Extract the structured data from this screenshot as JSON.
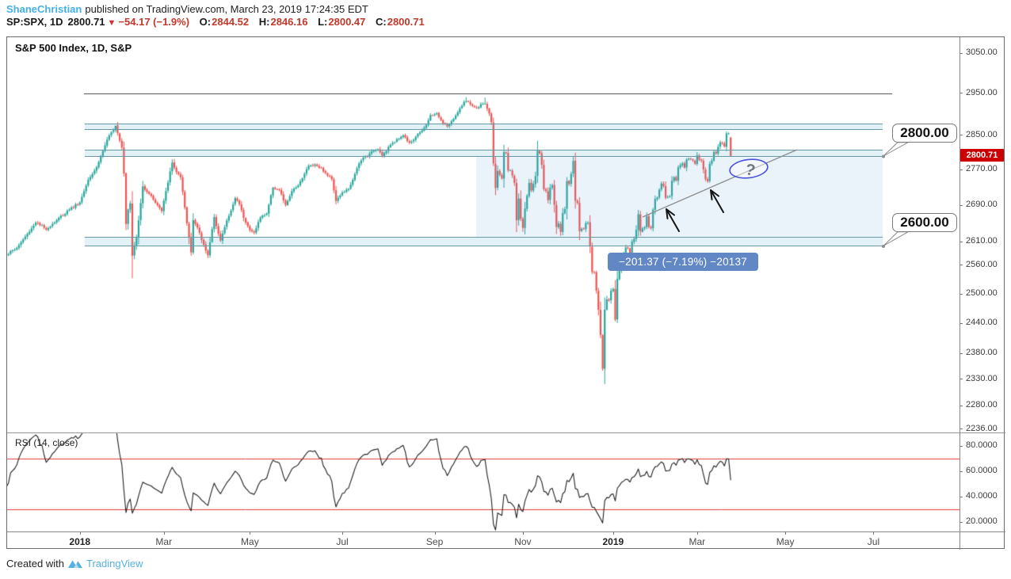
{
  "header": {
    "author": "ShaneChristian",
    "published": "published on TradingView.com, March 23, 2019 17:24:35 EDT",
    "symbol": "SP:SPX, 1D",
    "last": "2800.71",
    "direction_icon": "▼",
    "change": "−54.17 (−1.9%)",
    "ohlc": [
      {
        "label": "O:",
        "value": "2844.52"
      },
      {
        "label": "H:",
        "value": "2846.16"
      },
      {
        "label": "L:",
        "value": "2800.47"
      },
      {
        "label": "C:",
        "value": "2800.71"
      }
    ]
  },
  "axes": {
    "price_ticks": [
      "3050.00",
      "2950.00",
      "2850.00",
      "2770.00",
      "2690.00",
      "2610.00",
      "2560.00",
      "2500.00",
      "2440.00",
      "2380.00",
      "2330.00",
      "2280.00",
      "2236.00"
    ],
    "rsi_ticks": [
      "80.0000",
      "60.0000",
      "40.0000",
      "20.0000"
    ],
    "time_ticks": [
      {
        "label": "2018",
        "day": 35,
        "year": true
      },
      {
        "label": "Mar",
        "day": 75
      },
      {
        "label": "May",
        "day": 116
      },
      {
        "label": "Jul",
        "day": 160
      },
      {
        "label": "Sep",
        "day": 204
      },
      {
        "label": "Nov",
        "day": 246
      },
      {
        "label": "2019",
        "day": 289,
        "year": true
      },
      {
        "label": "Mar",
        "day": 329
      },
      {
        "label": "May",
        "day": 371
      },
      {
        "label": "Jul",
        "day": 413
      }
    ]
  },
  "footer": {
    "created_with": "Created with",
    "brand": "TradingView"
  },
  "colors": {
    "author": "#45b0e5",
    "negative": "#c0392b",
    "triangle": "#d32f2f",
    "up": "#26a69a",
    "down": "#ef5350",
    "zone_fill": "rgba(70,170,195,0.16)",
    "zone_border": "#6b9aa6",
    "highlight_fill": "rgba(100,160,220,0.13)",
    "level_line": "#5a5a5a",
    "trendline": "#8f8f8f",
    "arrow": "#141414",
    "ellipse": "#4c52e0",
    "question": "#6e7680",
    "measure_bg": "#6287c5",
    "tag_bg": "#cc0000",
    "rsi_line": "#202020",
    "rsi_level": "#e53935",
    "brand": "#54b1e2"
  },
  "chart_data": {
    "type": "candlestick",
    "title": "S&P 500 Index, 1D, S&P",
    "symbol": "SP:SPX",
    "timeframe": "1D",
    "price_scale": {
      "type": "log",
      "visible_low": 2236,
      "visible_high": 3080
    },
    "price_tag": "2800.71",
    "question_mark": "?",
    "last_bar": {
      "open": 2844.52,
      "high": 2846.16,
      "low": 2800.47,
      "close": 2800.71,
      "change": -54.17,
      "change_pct": -1.9
    },
    "anchors_close": [
      [
        0,
        2582
      ],
      [
        5,
        2597
      ],
      [
        10,
        2627
      ],
      [
        14,
        2652
      ],
      [
        19,
        2637
      ],
      [
        25,
        2662
      ],
      [
        30,
        2681
      ],
      [
        35,
        2696
      ],
      [
        39,
        2748
      ],
      [
        43,
        2776
      ],
      [
        48,
        2839
      ],
      [
        52,
        2873
      ],
      [
        55,
        2822
      ],
      [
        56,
        2762
      ],
      [
        57,
        2649
      ],
      [
        58,
        2681
      ],
      [
        59,
        2695
      ],
      [
        60,
        2581
      ],
      [
        62,
        2619
      ],
      [
        65,
        2732
      ],
      [
        68,
        2716
      ],
      [
        70,
        2703
      ],
      [
        74,
        2677
      ],
      [
        76,
        2721
      ],
      [
        79,
        2786
      ],
      [
        81,
        2765
      ],
      [
        83,
        2752
      ],
      [
        86,
        2650
      ],
      [
        88,
        2588
      ],
      [
        89,
        2658
      ],
      [
        91,
        2641
      ],
      [
        93,
        2614
      ],
      [
        96,
        2582
      ],
      [
        99,
        2663
      ],
      [
        102,
        2613
      ],
      [
        105,
        2656
      ],
      [
        107,
        2678
      ],
      [
        109,
        2706
      ],
      [
        111,
        2693
      ],
      [
        113,
        2663
      ],
      [
        116,
        2635
      ],
      [
        118,
        2630
      ],
      [
        121,
        2663
      ],
      [
        124,
        2672
      ],
      [
        127,
        2730
      ],
      [
        130,
        2724
      ],
      [
        133,
        2690
      ],
      [
        136,
        2721
      ],
      [
        139,
        2735
      ],
      [
        142,
        2761
      ],
      [
        144,
        2779
      ],
      [
        147,
        2782
      ],
      [
        150,
        2774
      ],
      [
        152,
        2762
      ],
      [
        155,
        2749
      ],
      [
        157,
        2700
      ],
      [
        160,
        2718
      ],
      [
        163,
        2726
      ],
      [
        166,
        2760
      ],
      [
        168,
        2784
      ],
      [
        170,
        2798
      ],
      [
        172,
        2801
      ],
      [
        175,
        2815
      ],
      [
        177,
        2818
      ],
      [
        179,
        2803
      ],
      [
        181,
        2813
      ],
      [
        183,
        2828
      ],
      [
        186,
        2840
      ],
      [
        189,
        2850
      ],
      [
        192,
        2833
      ],
      [
        194,
        2840
      ],
      [
        197,
        2857
      ],
      [
        200,
        2874
      ],
      [
        202,
        2897
      ],
      [
        205,
        2902
      ],
      [
        208,
        2878
      ],
      [
        210,
        2871
      ],
      [
        213,
        2888
      ],
      [
        215,
        2904
      ],
      [
        218,
        2930
      ],
      [
        220,
        2930
      ],
      [
        222,
        2919
      ],
      [
        224,
        2914
      ],
      [
        226,
        2924
      ],
      [
        228,
        2925
      ],
      [
        230,
        2902
      ],
      [
        231,
        2880
      ],
      [
        232,
        2785
      ],
      [
        233,
        2728
      ],
      [
        234,
        2767
      ],
      [
        236,
        2750
      ],
      [
        237,
        2810
      ],
      [
        238,
        2809
      ],
      [
        239,
        2769
      ],
      [
        240,
        2768
      ],
      [
        241,
        2756
      ],
      [
        242,
        2740
      ],
      [
        243,
        2656
      ],
      [
        244,
        2705
      ],
      [
        245,
        2659
      ],
      [
        246,
        2641
      ],
      [
        247,
        2683
      ],
      [
        248,
        2712
      ],
      [
        249,
        2740
      ],
      [
        250,
        2723
      ],
      [
        251,
        2738
      ],
      [
        252,
        2755
      ],
      [
        253,
        2814
      ],
      [
        254,
        2807
      ],
      [
        255,
        2781
      ],
      [
        256,
        2726
      ],
      [
        257,
        2722
      ],
      [
        258,
        2702
      ],
      [
        259,
        2730
      ],
      [
        260,
        2736
      ],
      [
        261,
        2691
      ],
      [
        262,
        2642
      ],
      [
        263,
        2650
      ],
      [
        264,
        2632
      ],
      [
        265,
        2673
      ],
      [
        266,
        2682
      ],
      [
        267,
        2744
      ],
      [
        268,
        2738
      ],
      [
        269,
        2760
      ],
      [
        270,
        2790
      ],
      [
        271,
        2700
      ],
      [
        272,
        2696
      ],
      [
        273,
        2633
      ],
      [
        274,
        2638
      ],
      [
        275,
        2637
      ],
      [
        276,
        2651
      ],
      [
        277,
        2651
      ],
      [
        278,
        2600
      ],
      [
        279,
        2546
      ],
      [
        280,
        2546
      ],
      [
        281,
        2507
      ],
      [
        282,
        2467
      ],
      [
        283,
        2417
      ],
      [
        284,
        2351
      ],
      [
        285,
        2468
      ],
      [
        286,
        2489
      ],
      [
        287,
        2486
      ],
      [
        288,
        2507
      ],
      [
        289,
        2510
      ],
      [
        290,
        2448
      ],
      [
        291,
        2532
      ],
      [
        292,
        2550
      ],
      [
        293,
        2574
      ],
      [
        294,
        2585
      ],
      [
        295,
        2597
      ],
      [
        296,
        2596
      ],
      [
        297,
        2582
      ],
      [
        298,
        2610
      ],
      [
        299,
        2616
      ],
      [
        300,
        2636
      ],
      [
        301,
        2671
      ],
      [
        302,
        2633
      ],
      [
        303,
        2639
      ],
      [
        304,
        2642
      ],
      [
        305,
        2665
      ],
      [
        306,
        2643
      ],
      [
        307,
        2640
      ],
      [
        308,
        2681
      ],
      [
        309,
        2704
      ],
      [
        310,
        2707
      ],
      [
        311,
        2725
      ],
      [
        312,
        2738
      ],
      [
        313,
        2732
      ],
      [
        314,
        2706
      ],
      [
        315,
        2708
      ],
      [
        316,
        2710
      ],
      [
        317,
        2745
      ],
      [
        318,
        2753
      ],
      [
        319,
        2746
      ],
      [
        320,
        2776
      ],
      [
        321,
        2780
      ],
      [
        322,
        2785
      ],
      [
        323,
        2775
      ],
      [
        324,
        2793
      ],
      [
        325,
        2796
      ],
      [
        326,
        2794
      ],
      [
        327,
        2792
      ],
      [
        328,
        2784
      ],
      [
        329,
        2804
      ],
      [
        330,
        2793
      ],
      [
        331,
        2790
      ],
      [
        332,
        2771
      ],
      [
        333,
        2749
      ],
      [
        334,
        2743
      ],
      [
        335,
        2783
      ],
      [
        336,
        2791
      ],
      [
        337,
        2811
      ],
      [
        338,
        2808
      ],
      [
        339,
        2822
      ],
      [
        340,
        2833
      ],
      [
        341,
        2832
      ],
      [
        342,
        2824
      ],
      [
        343,
        2855
      ],
      [
        344,
        2854
      ],
      [
        345,
        2801
      ]
    ],
    "key_days": [
      {
        "day": 52,
        "high": 2872.87
      },
      {
        "day": 60,
        "low": 2532.69
      },
      {
        "day": 219,
        "high": 2940.91
      },
      {
        "day": 228,
        "high": 2939.86
      },
      {
        "day": 284,
        "low": 2346.58
      },
      {
        "day": 345,
        "open": 2844.52,
        "high": 2846.16,
        "low": 2800.47,
        "close": 2800.71
      }
    ],
    "levels": {
      "horizontal_line": 2950,
      "resistance_zones": [
        {
          "from": 2863,
          "to": 2878
        },
        {
          "from": 2800,
          "to": 2817
        },
        {
          "from": 2600,
          "to": 2621
        }
      ],
      "highlight_box": {
        "from_day": 224,
        "to_day": 417,
        "price_from": 2621,
        "price_to": 2800
      }
    },
    "trendline": {
      "from": {
        "day": 301,
        "price": 2664
      },
      "to": {
        "day": 374,
        "price": 2816
      }
    },
    "measurement": {
      "text": "−201.37 (−7.19%) −20137",
      "change": -201.37,
      "change_pct": -7.19,
      "value": -20137
    },
    "callouts": [
      {
        "text": "2800.00",
        "price": 2800
      },
      {
        "text": "2600.00",
        "price": 2600
      }
    ],
    "rsi": {
      "label": "RSI (14, close)",
      "period": 14,
      "source": "close",
      "overbought": 70,
      "oversold": 30,
      "ticks": [
        80,
        60,
        40,
        20
      ]
    }
  }
}
